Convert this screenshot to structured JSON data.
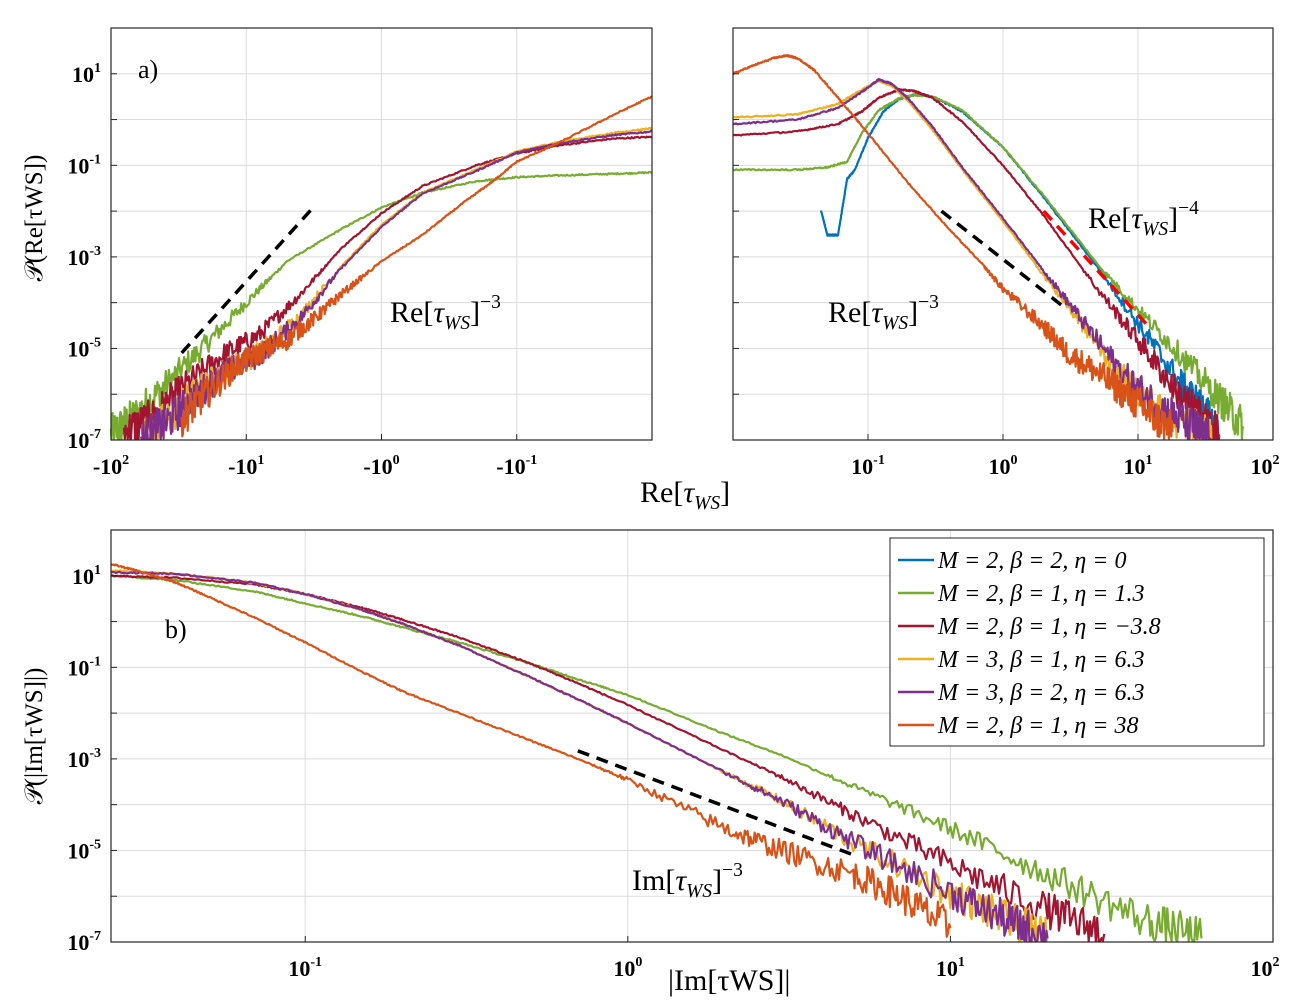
{
  "chart_data": [
    {
      "id": "a_left",
      "type": "line",
      "panel_label": "a)",
      "xscale": "log-negative",
      "yscale": "log",
      "xlim": [
        -100,
        -0.01
      ],
      "ylim": [
        1e-07,
        100
      ],
      "x_ticks": [
        {
          "base": "-10",
          "exp": "2"
        },
        {
          "base": "-10",
          "exp": "1"
        },
        {
          "base": "-10",
          "exp": "0"
        },
        {
          "base": "-10",
          "exp": "-1"
        }
      ],
      "y_ticks": [
        {
          "base": "10",
          "exp": "1"
        },
        {
          "base": "10",
          "exp": "-1"
        },
        {
          "base": "10",
          "exp": "-3"
        },
        {
          "base": "10",
          "exp": "-5"
        },
        {
          "base": "10",
          "exp": "-7"
        }
      ],
      "ylabel": "𝒫(Re[τWS])",
      "reference_line": {
        "x": [
          -30,
          -3.2
        ],
        "y": [
          8e-06,
          0.012
        ],
        "label": "Re[τWS]",
        "label_exp": "−3",
        "color": "#000000"
      },
      "series": [
        {
          "name": "M = 2, β = 2, η = 0",
          "color": "#0072BD",
          "x": [],
          "y": []
        },
        {
          "name": "M = 2, β = 1, η = 1.3",
          "color": "#77AC30",
          "x": [
            -100,
            -70,
            -40,
            -20,
            -10,
            -5,
            -2,
            -1,
            -0.5,
            -0.2,
            -0.1,
            -0.05,
            -0.02,
            -0.01
          ],
          "y": [
            1.3e-07,
            3e-07,
            1.5e-06,
            1.2e-05,
            0.0001,
            0.0008,
            0.004,
            0.012,
            0.025,
            0.045,
            0.055,
            0.06,
            0.065,
            0.07
          ]
        },
        {
          "name": "M = 2, β = 1, η = −3.8",
          "color": "#A2142F",
          "x": [
            -80,
            -50,
            -30,
            -15,
            -8,
            -4,
            -2,
            -1,
            -0.5,
            -0.2,
            -0.1,
            -0.05,
            -0.02,
            -0.01
          ],
          "y": [
            1.5e-07,
            3e-07,
            1.3e-06,
            7e-06,
            2e-05,
            0.00015,
            0.0015,
            0.009,
            0.035,
            0.1,
            0.18,
            0.27,
            0.38,
            0.42
          ]
        },
        {
          "name": "M = 3, β = 1, η = 6.3",
          "color": "#EDB120",
          "x": [
            -60,
            -40,
            -25,
            -15,
            -8,
            -4,
            -2,
            -1,
            -0.5,
            -0.2,
            -0.1,
            -0.05,
            -0.02,
            -0.01
          ],
          "y": [
            1e-07,
            2.5e-07,
            9e-07,
            3e-06,
            8e-06,
            5e-05,
            0.0006,
            0.005,
            0.025,
            0.08,
            0.2,
            0.32,
            0.5,
            0.65
          ]
        },
        {
          "name": "M = 3, β = 2, η = 6.3",
          "color": "#7E2F8E",
          "x": [
            -60,
            -40,
            -25,
            -15,
            -8,
            -4,
            -2,
            -1,
            -0.5,
            -0.2,
            -0.1,
            -0.05,
            -0.02,
            -0.01
          ],
          "y": [
            1e-07,
            2.2e-07,
            8e-07,
            2.8e-06,
            7e-06,
            4.5e-05,
            0.00055,
            0.0045,
            0.024,
            0.075,
            0.19,
            0.3,
            0.45,
            0.55
          ]
        },
        {
          "name": "M = 2, β = 1, η = 38",
          "color": "#D95319",
          "x": [
            -30,
            -20,
            -12,
            -8,
            -5,
            -3,
            -2,
            -1,
            -0.5,
            -0.25,
            -0.15,
            -0.1,
            -0.05,
            -0.02,
            -0.01
          ],
          "y": [
            3e-07,
            1e-06,
            4e-06,
            8e-06,
            1.5e-05,
            5e-05,
            0.00015,
            0.0008,
            0.003,
            0.015,
            0.045,
            0.12,
            0.3,
            1.2,
            3.2
          ]
        }
      ]
    },
    {
      "id": "a_right",
      "type": "line",
      "xscale": "log",
      "yscale": "log",
      "xlim": [
        0.01,
        100
      ],
      "ylim": [
        1e-07,
        100
      ],
      "x_ticks": [
        {
          "base": "10",
          "exp": "-1"
        },
        {
          "base": "10",
          "exp": "0"
        },
        {
          "base": "10",
          "exp": "1"
        },
        {
          "base": "10",
          "exp": "2"
        }
      ],
      "xlabel": "Re[τWS]",
      "reference_lines": [
        {
          "x": [
            0.35,
            3
          ],
          "y": [
            0.01,
            7e-05
          ],
          "label": "Re[τWS]",
          "label_exp": "−3",
          "color": "#000000"
        },
        {
          "x": [
            2,
            12
          ],
          "y": [
            0.01,
            3e-05
          ],
          "label": "Re[τWS]",
          "label_exp": "−4",
          "color": "#FF0000"
        }
      ],
      "series": [
        {
          "name": "M = 2, β = 2, η = 0",
          "color": "#0072BD",
          "x": [
            0.045,
            0.05,
            0.06,
            0.07,
            0.08,
            0.1,
            0.13,
            0.17,
            0.22,
            0.3,
            0.5,
            1,
            2,
            5,
            10,
            20,
            30,
            40
          ],
          "y": [
            0.01,
            0.003,
            0.003,
            0.05,
            0.08,
            0.4,
            1.5,
            2.8,
            3.5,
            3.2,
            1.5,
            0.25,
            0.02,
            0.0006,
            3.5e-05,
            2e-06,
            5e-07,
            1.2e-07
          ]
        },
        {
          "name": "M = 2, β = 1, η = 1.3",
          "color": "#77AC30",
          "x": [
            0.01,
            0.03,
            0.05,
            0.07,
            0.09,
            0.12,
            0.17,
            0.22,
            0.3,
            0.5,
            1,
            2,
            5,
            10,
            20,
            40,
            60
          ],
          "y": [
            0.08,
            0.08,
            0.09,
            0.12,
            0.5,
            1.6,
            2.9,
            3.4,
            3.2,
            1.6,
            0.25,
            0.022,
            0.0007,
            7e-05,
            8e-06,
            8e-07,
            2e-07
          ]
        },
        {
          "name": "M = 2, β = 1, η = −3.8",
          "color": "#A2142F",
          "x": [
            0.01,
            0.03,
            0.06,
            0.09,
            0.12,
            0.17,
            0.22,
            0.3,
            0.5,
            1,
            2,
            5,
            10,
            20,
            30,
            40
          ],
          "y": [
            0.45,
            0.55,
            0.8,
            1.5,
            3,
            4.5,
            4.2,
            3,
            0.9,
            0.1,
            0.008,
            0.0002,
            1.5e-05,
            1e-06,
            3e-07,
            1.2e-07
          ]
        },
        {
          "name": "M = 3, β = 1, η = 6.3",
          "color": "#EDB120",
          "x": [
            0.01,
            0.03,
            0.06,
            0.09,
            0.12,
            0.15,
            0.2,
            0.3,
            0.5,
            1,
            2,
            4,
            8,
            15,
            25,
            35
          ],
          "y": [
            1.1,
            1.3,
            2.2,
            4.5,
            7,
            5.5,
            2.5,
            0.6,
            0.08,
            0.006,
            0.0004,
            3e-05,
            2e-06,
            4e-07,
            2e-07,
            1e-07
          ]
        },
        {
          "name": "M = 3, β = 2, η = 6.3",
          "color": "#7E2F8E",
          "x": [
            0.01,
            0.03,
            0.06,
            0.09,
            0.12,
            0.15,
            0.2,
            0.3,
            0.5,
            1,
            2,
            4,
            8,
            15,
            25,
            35
          ],
          "y": [
            0.8,
            1.0,
            1.8,
            4,
            7.5,
            6,
            2.8,
            0.7,
            0.09,
            0.007,
            0.0005,
            3.5e-05,
            2.5e-06,
            5e-07,
            2e-07,
            1e-07
          ]
        },
        {
          "name": "M = 2, β = 1, η = 38",
          "color": "#D95319",
          "x": [
            0.01,
            0.014,
            0.02,
            0.025,
            0.03,
            0.04,
            0.06,
            0.1,
            0.2,
            0.4,
            0.7,
            1,
            2,
            3,
            5,
            8,
            12,
            18
          ],
          "y": [
            10,
            15,
            22,
            25,
            22,
            12,
            3,
            0.5,
            0.04,
            0.004,
            0.0007,
            0.0002,
            3e-05,
            8e-06,
            3e-06,
            1e-06,
            4e-07,
            1.5e-07
          ]
        }
      ]
    },
    {
      "id": "b",
      "type": "line",
      "panel_label": "b)",
      "xscale": "log",
      "yscale": "log",
      "xlim": [
        0.025,
        100
      ],
      "ylim": [
        1e-07,
        100
      ],
      "x_ticks": [
        {
          "base": "10",
          "exp": "-1"
        },
        {
          "base": "10",
          "exp": "0"
        },
        {
          "base": "10",
          "exp": "1"
        },
        {
          "base": "10",
          "exp": "2"
        }
      ],
      "y_ticks": [
        {
          "base": "10",
          "exp": "1"
        },
        {
          "base": "10",
          "exp": "-1"
        },
        {
          "base": "10",
          "exp": "-3"
        },
        {
          "base": "10",
          "exp": "-5"
        },
        {
          "base": "10",
          "exp": "-7"
        }
      ],
      "xlabel": "|Im[τWS]|",
      "ylabel": "𝒫(|Im[τWS]|)",
      "reference_line": {
        "x": [
          0.7,
          5
        ],
        "y": [
          0.0015,
          8e-06
        ],
        "label": "Im[τWS]",
        "label_exp": "−3",
        "color": "#000000"
      },
      "legend": {
        "position": "top-right"
      },
      "series": [
        {
          "name": "M = 2, β = 2, η = 0",
          "color": "#0072BD",
          "x": [],
          "y": []
        },
        {
          "name": "M = 2, β = 1, η = 1.3",
          "color": "#77AC30",
          "x": [
            0.025,
            0.04,
            0.07,
            0.1,
            0.15,
            0.2,
            0.3,
            0.5,
            0.7,
            1,
            2,
            3,
            5,
            10,
            20,
            40,
            60
          ],
          "y": [
            10,
            8,
            4.5,
            2.5,
            1.3,
            0.75,
            0.35,
            0.12,
            0.055,
            0.025,
            0.0035,
            0.0012,
            0.00025,
            3e-05,
            3e-06,
            3e-07,
            1.2e-07
          ]
        },
        {
          "name": "M = 2, β = 1, η = −3.8",
          "color": "#A2142F",
          "x": [
            0.025,
            0.04,
            0.07,
            0.1,
            0.15,
            0.2,
            0.3,
            0.5,
            0.7,
            1,
            2,
            3,
            5,
            10,
            20,
            30
          ],
          "y": [
            10,
            9,
            6.5,
            4,
            2,
            1.1,
            0.45,
            0.12,
            0.045,
            0.015,
            0.0015,
            0.0004,
            6e-05,
            5e-06,
            5e-07,
            1.5e-07
          ]
        },
        {
          "name": "M = 3, β = 1, η = 6.3",
          "color": "#EDB120",
          "x": [
            0.025,
            0.04,
            0.07,
            0.1,
            0.15,
            0.2,
            0.3,
            0.5,
            0.7,
            1,
            2,
            3,
            5,
            10,
            15,
            20
          ],
          "y": [
            13,
            11,
            7,
            4,
            1.8,
            0.9,
            0.3,
            0.06,
            0.02,
            0.006,
            0.0005,
            0.00012,
            1.5e-05,
            1.2e-06,
            3e-07,
            1.2e-07
          ]
        },
        {
          "name": "M = 3, β = 2, η = 6.3",
          "color": "#7E2F8E",
          "x": [
            0.025,
            0.04,
            0.07,
            0.1,
            0.15,
            0.2,
            0.3,
            0.5,
            0.7,
            1,
            2,
            3,
            5,
            10,
            15,
            20
          ],
          "y": [
            12,
            11,
            7,
            4,
            1.8,
            0.9,
            0.3,
            0.06,
            0.02,
            0.006,
            0.0005,
            0.00012,
            1.5e-05,
            1.2e-06,
            3e-07,
            1.2e-07
          ]
        },
        {
          "name": "M = 2, β = 1, η = 38",
          "color": "#D95319",
          "x": [
            0.025,
            0.03,
            0.04,
            0.05,
            0.07,
            0.1,
            0.15,
            0.2,
            0.3,
            0.5,
            0.7,
            1,
            2,
            3,
            5,
            7,
            10
          ],
          "y": [
            18,
            13,
            7,
            3.5,
            1.2,
            0.35,
            0.08,
            0.03,
            0.01,
            0.0025,
            0.001,
            0.00035,
            3e-05,
            1e-05,
            3e-06,
            1e-06,
            2e-07
          ]
        }
      ]
    }
  ]
}
